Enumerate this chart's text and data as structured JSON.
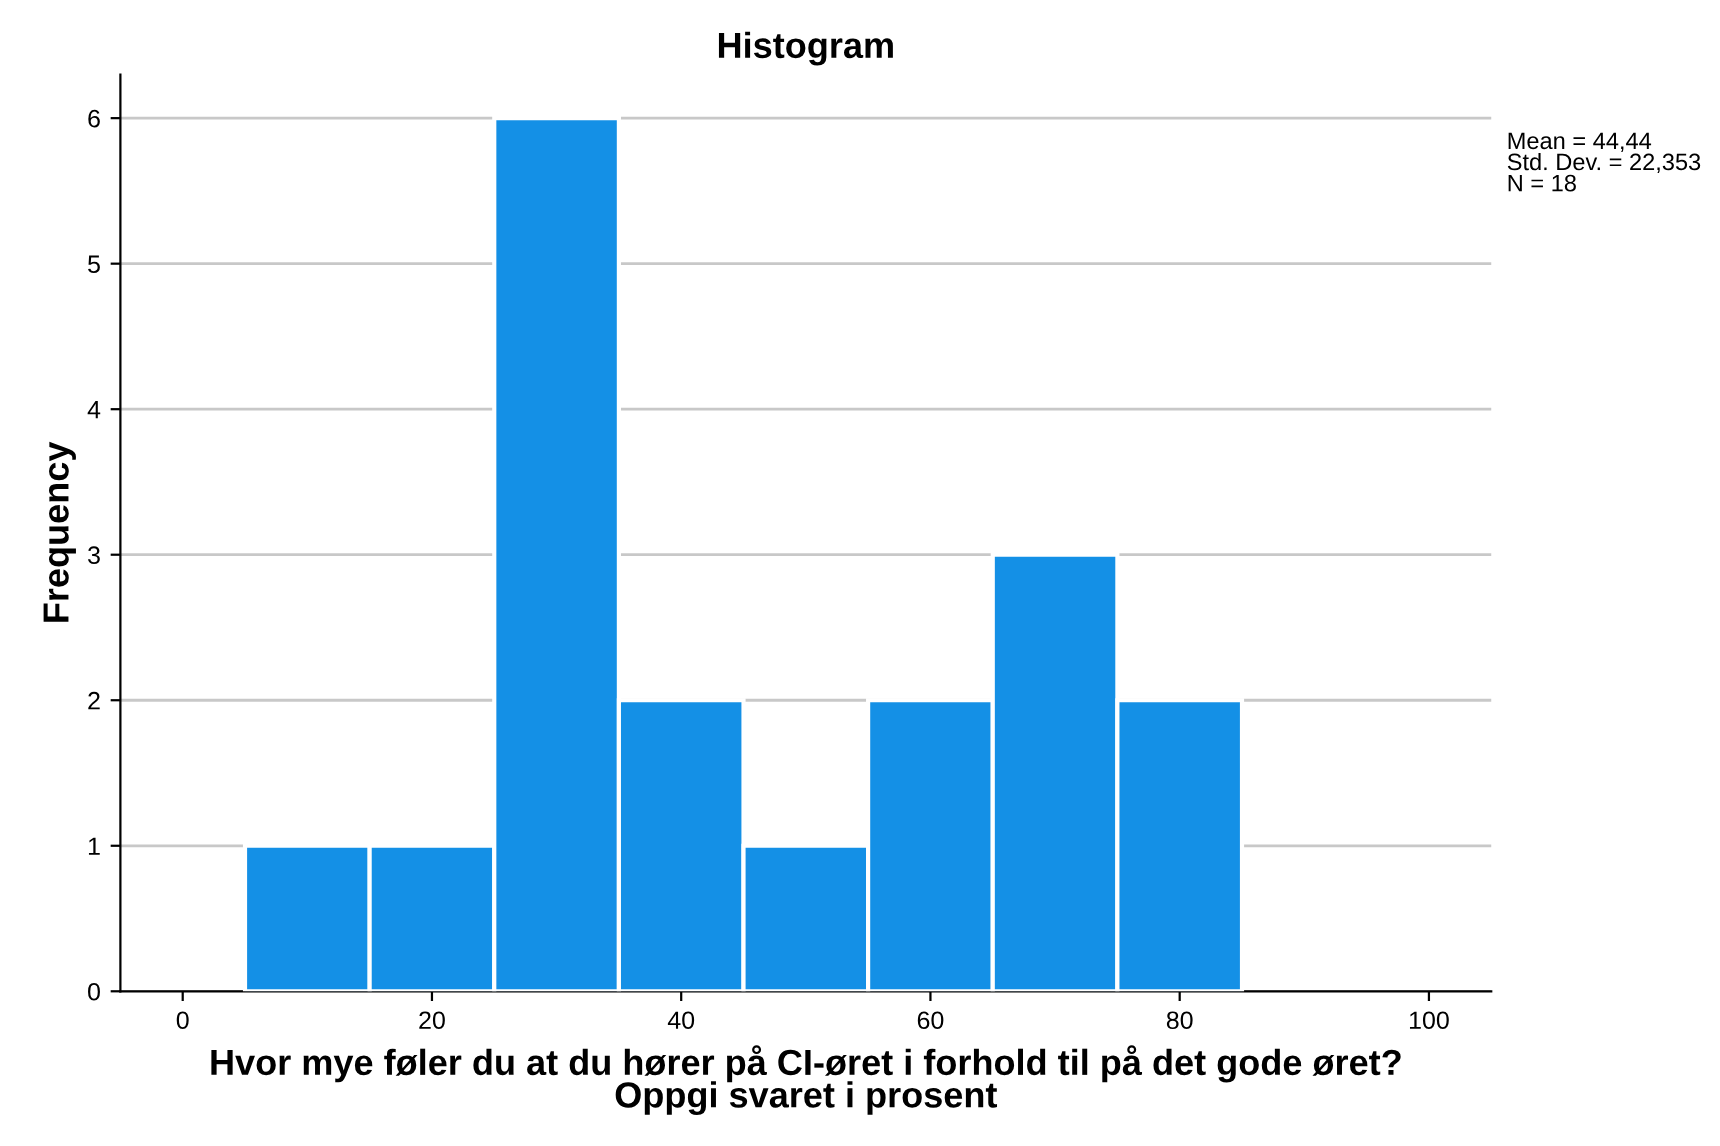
{
  "chart_data": {
    "type": "histogram",
    "title": "Histogram",
    "xlabel": "Hvor mye føler du at du hører på CI-øret i forhold til på det gode øret?\nOppgi svaret i prosent",
    "ylabel": "Frequency",
    "bins": [
      5,
      15,
      25,
      35,
      45,
      55,
      65,
      75,
      85
    ],
    "values": [
      1,
      1,
      6,
      2,
      1,
      2,
      3,
      2
    ],
    "color": "#1490e6",
    "xlim": [
      -5,
      105
    ],
    "xticks": [
      0,
      20,
      40,
      60,
      80,
      100
    ],
    "ylim": [
      0,
      6.3
    ],
    "yticks": [
      0,
      1,
      2,
      3,
      4,
      5,
      6
    ],
    "grid": "y",
    "annotations": [
      "Mean = 44,44\nStd. Dev. = 22,353\nN = 18"
    ]
  }
}
